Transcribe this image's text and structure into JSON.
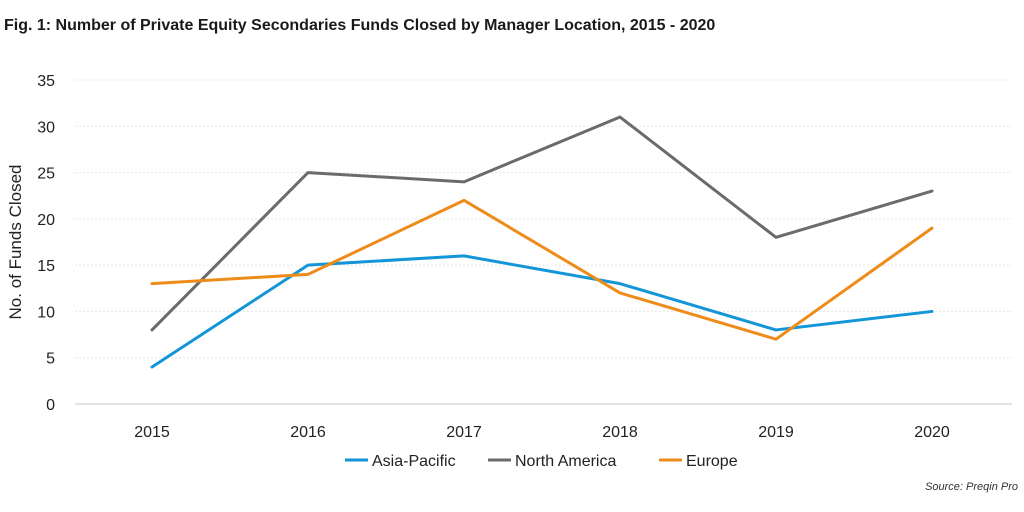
{
  "title": "Fig. 1: Number of Private Equity Secondaries Funds Closed by Manager Location, 2015 - 2020",
  "source": "Source: Preqin Pro",
  "chart_data": {
    "type": "line",
    "x": [
      "2015",
      "2016",
      "2017",
      "2018",
      "2019",
      "2020"
    ],
    "series": [
      {
        "name": "Asia-Pacific",
        "color": "#1396d8",
        "values": [
          4,
          15,
          16,
          13,
          8,
          10
        ]
      },
      {
        "name": "North America",
        "color": "#6b6b6b",
        "values": [
          8,
          25,
          24,
          31,
          18,
          23
        ]
      },
      {
        "name": "Europe",
        "color": "#ee8c1b",
        "values": [
          13,
          14,
          22,
          12,
          7,
          19
        ]
      }
    ],
    "ylabel": "No. of Funds Closed",
    "xlabel": "",
    "ylim": [
      0,
      35
    ],
    "yticks": [
      0,
      5,
      10,
      15,
      20,
      25,
      30,
      35
    ],
    "grid": true,
    "legend": "bottom"
  }
}
